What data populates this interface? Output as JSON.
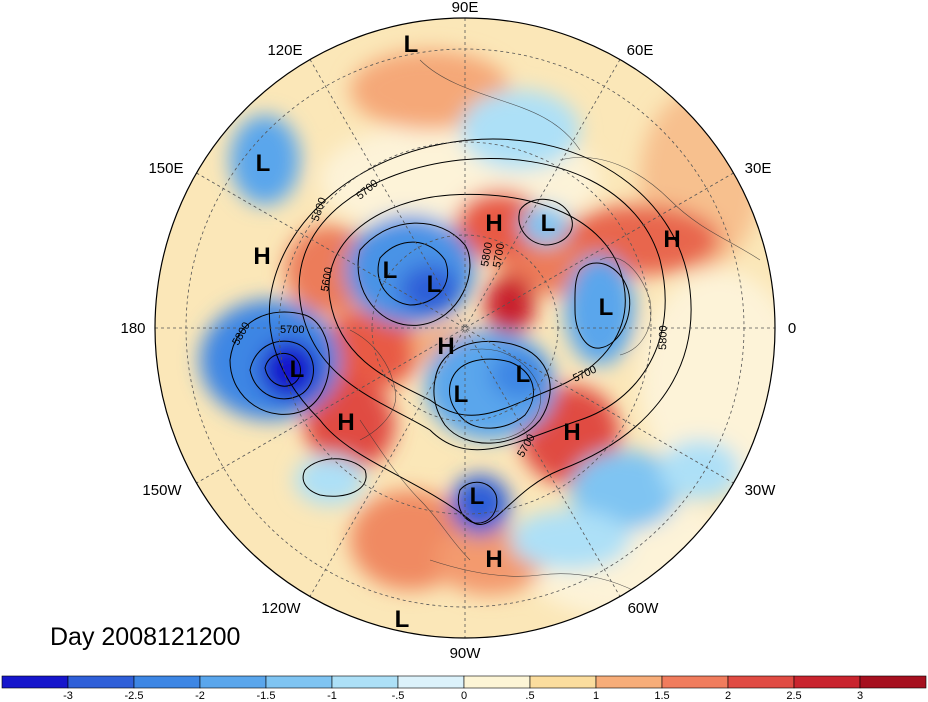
{
  "title": "Day 2008121200",
  "longitude_labels": [
    "90E",
    "60E",
    "30E",
    "0",
    "30W",
    "60W",
    "90W",
    "120W",
    "150W",
    "180",
    "150E",
    "120E"
  ],
  "contour_labels": [
    "5800",
    "5700",
    "5600",
    "5700",
    "5800",
    "5700",
    "5800",
    "5700",
    "5800",
    "5700"
  ],
  "pressure_centers": [
    {
      "type": "L",
      "label": "L"
    },
    {
      "type": "L",
      "label": "L"
    },
    {
      "type": "H",
      "label": "H"
    },
    {
      "type": "H",
      "label": "H"
    },
    {
      "type": "L",
      "label": "L"
    },
    {
      "type": "H",
      "label": "H"
    },
    {
      "type": "L",
      "label": "L"
    },
    {
      "type": "L",
      "label": "L"
    },
    {
      "type": "L",
      "label": "L"
    },
    {
      "type": "L",
      "label": "L"
    },
    {
      "type": "H",
      "label": "H"
    },
    {
      "type": "L",
      "label": "L"
    },
    {
      "type": "L",
      "label": "L"
    },
    {
      "type": "L",
      "label": "L"
    },
    {
      "type": "H",
      "label": "H"
    },
    {
      "type": "H",
      "label": "H"
    },
    {
      "type": "L",
      "label": "L"
    },
    {
      "type": "H",
      "label": "H"
    },
    {
      "type": "L",
      "label": "L"
    }
  ],
  "colorbar": {
    "labels": [
      "-3",
      "-2.5",
      "-2",
      "-1.5",
      "-1",
      "-.5",
      "0",
      ".5",
      "1",
      "1.5",
      "2",
      "2.5",
      "3"
    ],
    "colors": [
      "#1616cc",
      "#2f5fd8",
      "#3d86e4",
      "#5aa6ec",
      "#7fc4f2",
      "#ade0f7",
      "#dcf2fb",
      "#fdf5d6",
      "#fbdd9e",
      "#f7ad79",
      "#f07c5d",
      "#e04b43",
      "#c9242e",
      "#a6101f"
    ]
  }
}
